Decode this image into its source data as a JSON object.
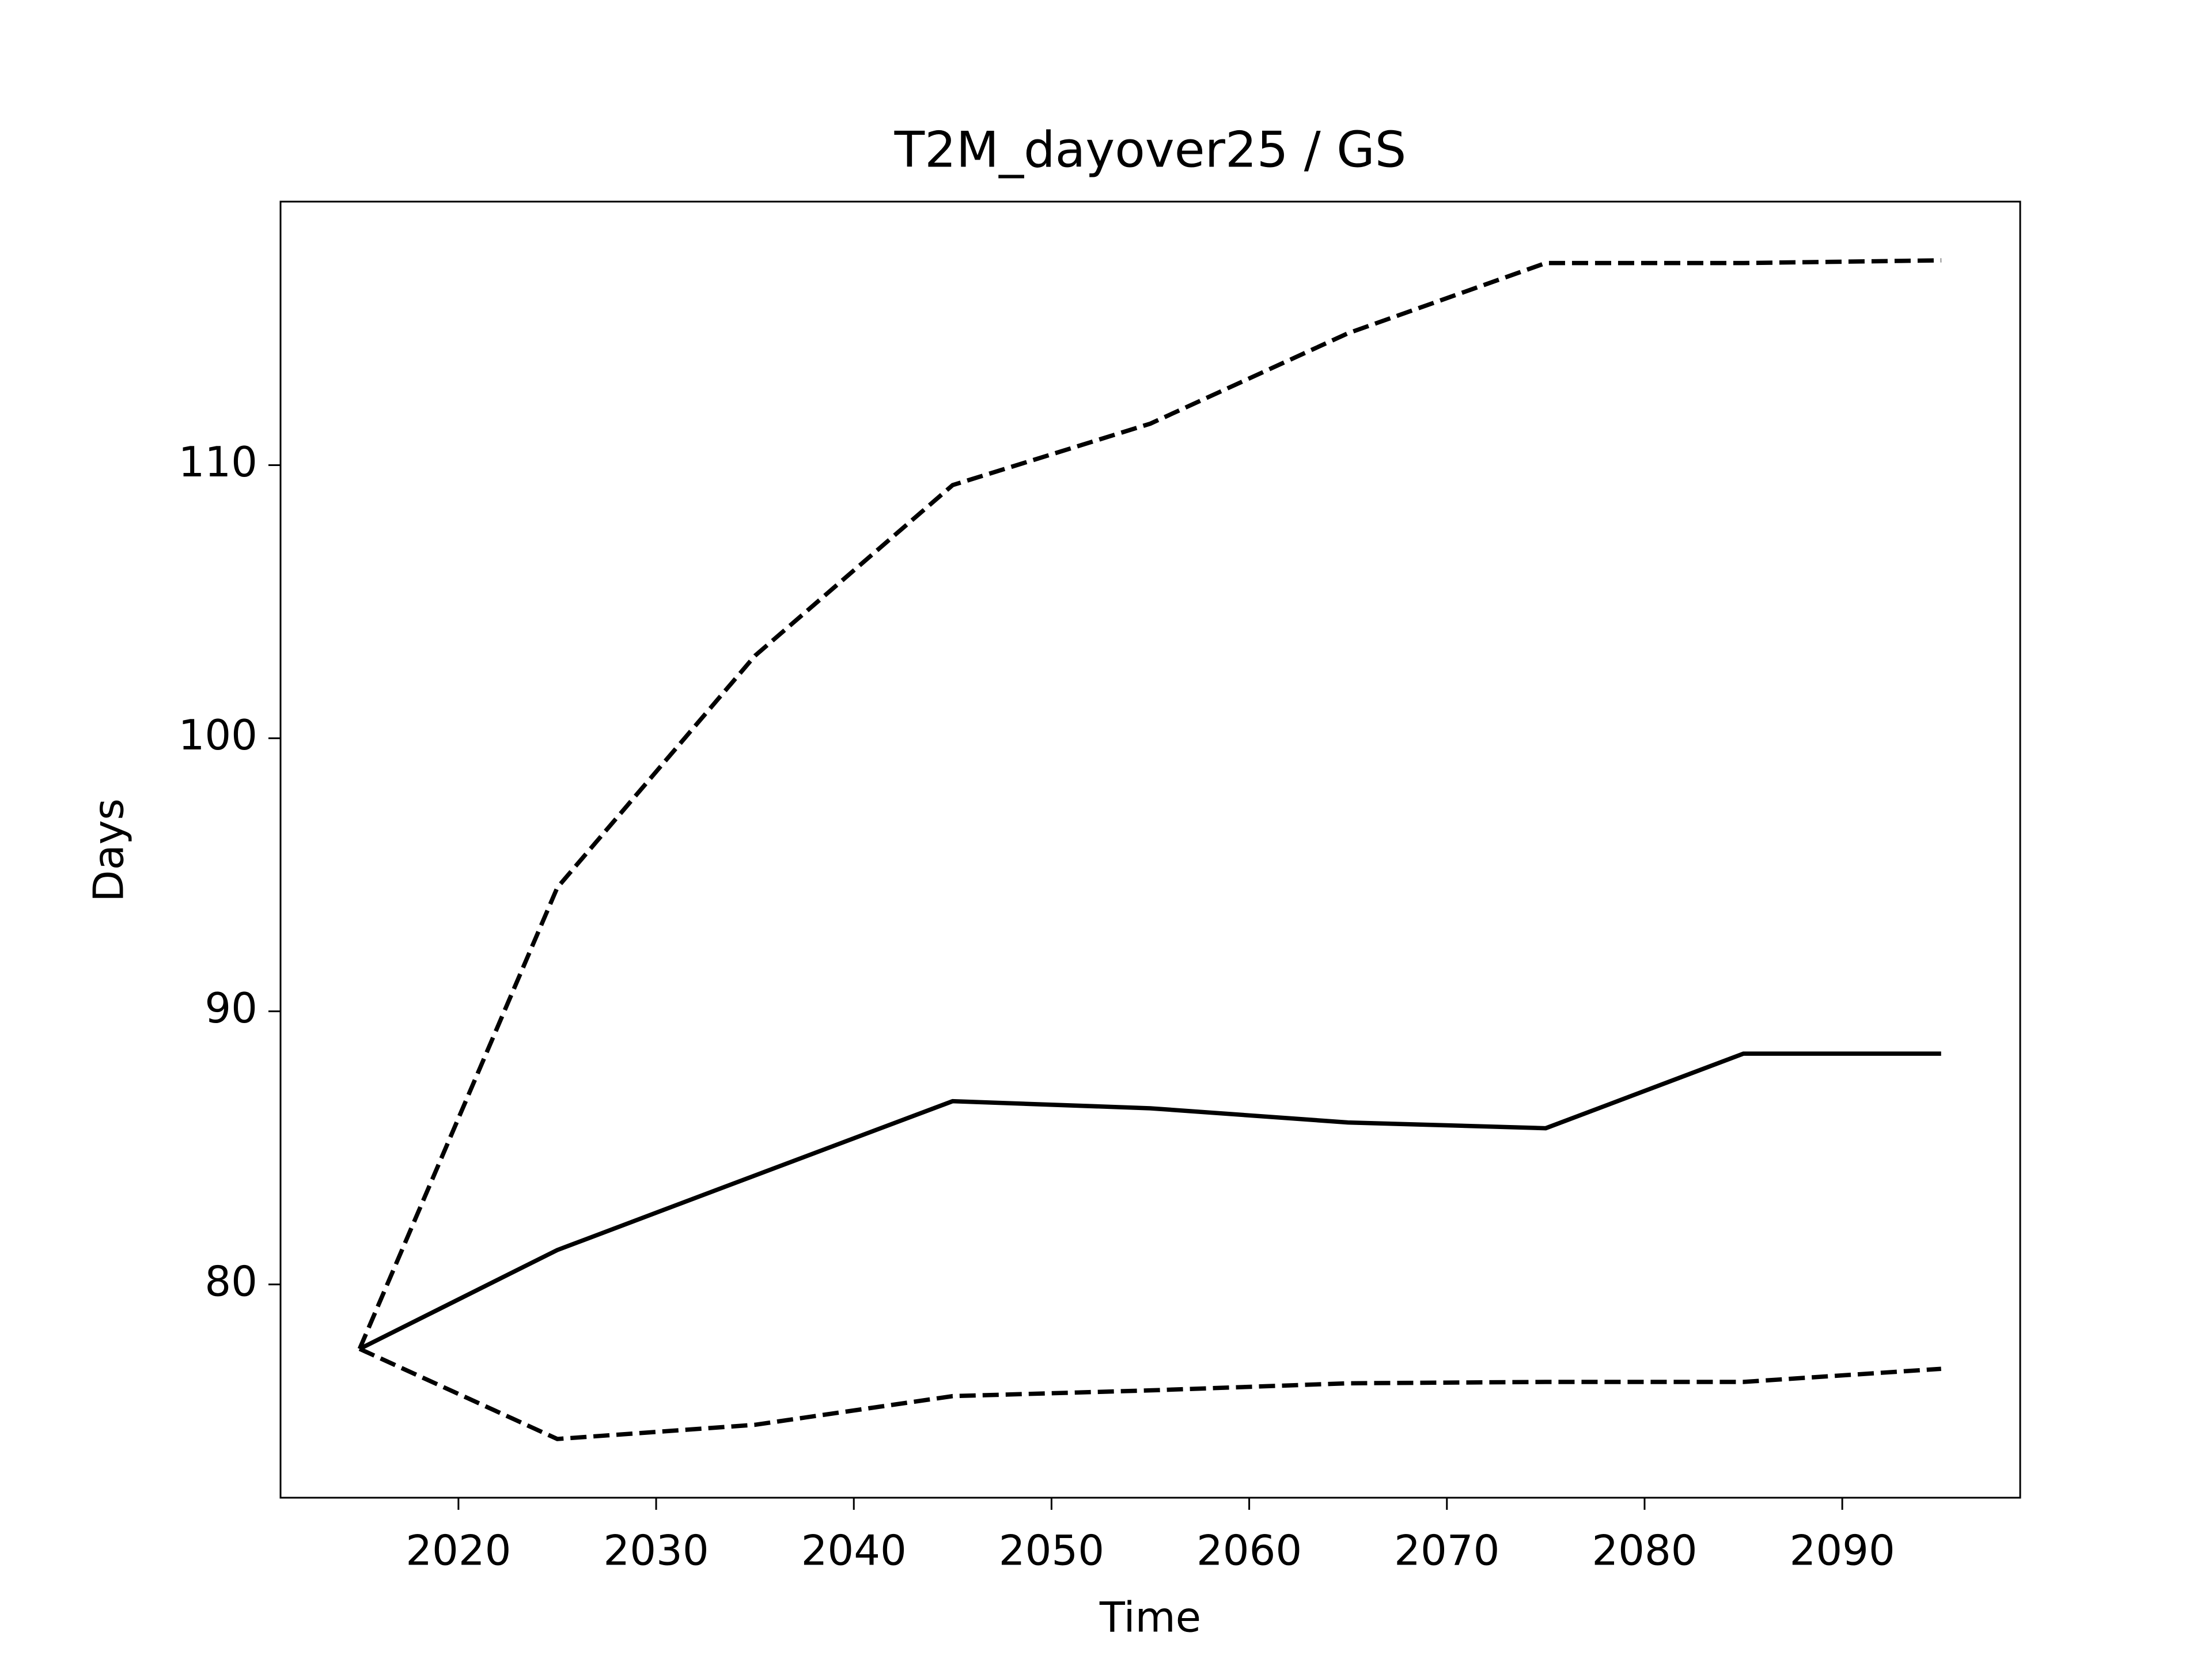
{
  "chart_data": {
    "type": "line",
    "title": "T2M_dayover25 / GS",
    "xlabel": "Time",
    "ylabel": "Days",
    "x": [
      2015,
      2025,
      2035,
      2045,
      2055,
      2065,
      2075,
      2085,
      2095
    ],
    "series": [
      {
        "color": "#000000",
        "dash": "solid",
        "values": [
          77.64,
          81.26,
          83.99,
          86.71,
          86.45,
          85.93,
          85.72,
          88.45,
          88.45
        ]
      },
      {
        "color": "#000000",
        "dash": "dashed",
        "values": [
          77.64,
          94.53,
          103.02,
          109.27,
          111.52,
          114.83,
          117.4,
          117.4,
          117.5
        ]
      },
      {
        "color": "#000000",
        "dash": "dashed",
        "values": [
          77.64,
          74.34,
          74.86,
          75.91,
          76.12,
          76.38,
          76.43,
          76.43,
          76.91
        ]
      }
    ],
    "xlim": [
      2011,
      2099
    ],
    "xticks": [
      2020,
      2030,
      2040,
      2050,
      2060,
      2070,
      2080,
      2090
    ],
    "ylim": [
      72.19,
      119.65
    ],
    "yticks": [
      80,
      90,
      100,
      110
    ],
    "grid": false
  }
}
